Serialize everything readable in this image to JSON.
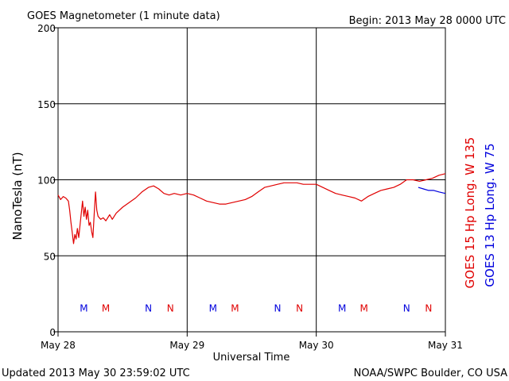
{
  "header": {
    "title": "GOES Magnetometer (1 minute data)",
    "begin": "Begin:  2013 May 28 0000 UTC"
  },
  "footer": {
    "updated": "Updated 2013 May 30 23:59:02 UTC",
    "credit": "NOAA/SWPC Boulder, CO USA"
  },
  "colors": {
    "goes15": "#e00000",
    "goes13": "#0000dd",
    "axis": "#000000"
  },
  "chart_data": {
    "type": "line",
    "xlabel": "Universal Time",
    "ylabel": "NanoTesla (nT)",
    "xlim": [
      0,
      3
    ],
    "ylim": [
      0,
      200
    ],
    "x_ticks": [
      {
        "value": 0,
        "label": "May 28"
      },
      {
        "value": 1,
        "label": "May 29"
      },
      {
        "value": 2,
        "label": "May 30"
      },
      {
        "value": 3,
        "label": "May 31"
      }
    ],
    "y_ticks": [
      {
        "value": 0,
        "label": "0"
      },
      {
        "value": 50,
        "label": "50"
      },
      {
        "value": 100,
        "label": "100"
      },
      {
        "value": 150,
        "label": "150"
      },
      {
        "value": 200,
        "label": "200"
      }
    ],
    "grid": true,
    "series": [
      {
        "name": "GOES 15 Hp  Long. W 135",
        "color": "#e00000",
        "points": [
          [
            0.0,
            90
          ],
          [
            0.02,
            87
          ],
          [
            0.04,
            89
          ],
          [
            0.06,
            88
          ],
          [
            0.08,
            86
          ],
          [
            0.09,
            80
          ],
          [
            0.1,
            72
          ],
          [
            0.11,
            65
          ],
          [
            0.12,
            58
          ],
          [
            0.13,
            64
          ],
          [
            0.14,
            61
          ],
          [
            0.15,
            68
          ],
          [
            0.16,
            62
          ],
          [
            0.17,
            70
          ],
          [
            0.18,
            78
          ],
          [
            0.19,
            86
          ],
          [
            0.2,
            76
          ],
          [
            0.21,
            82
          ],
          [
            0.22,
            74
          ],
          [
            0.23,
            80
          ],
          [
            0.24,
            70
          ],
          [
            0.25,
            72
          ],
          [
            0.26,
            66
          ],
          [
            0.27,
            62
          ],
          [
            0.28,
            78
          ],
          [
            0.29,
            92
          ],
          [
            0.3,
            80
          ],
          [
            0.31,
            76
          ],
          [
            0.33,
            74
          ],
          [
            0.35,
            75
          ],
          [
            0.37,
            73
          ],
          [
            0.4,
            77
          ],
          [
            0.42,
            74
          ],
          [
            0.45,
            78
          ],
          [
            0.5,
            82
          ],
          [
            0.55,
            85
          ],
          [
            0.6,
            88
          ],
          [
            0.65,
            92
          ],
          [
            0.7,
            95
          ],
          [
            0.74,
            96
          ],
          [
            0.78,
            94
          ],
          [
            0.82,
            91
          ],
          [
            0.86,
            90
          ],
          [
            0.9,
            91
          ],
          [
            0.95,
            90
          ],
          [
            1.0,
            91
          ],
          [
            1.05,
            90
          ],
          [
            1.1,
            88
          ],
          [
            1.15,
            86
          ],
          [
            1.2,
            85
          ],
          [
            1.25,
            84
          ],
          [
            1.3,
            84
          ],
          [
            1.35,
            85
          ],
          [
            1.4,
            86
          ],
          [
            1.45,
            87
          ],
          [
            1.5,
            89
          ],
          [
            1.55,
            92
          ],
          [
            1.6,
            95
          ],
          [
            1.65,
            96
          ],
          [
            1.7,
            97
          ],
          [
            1.75,
            98
          ],
          [
            1.8,
            98
          ],
          [
            1.85,
            98
          ],
          [
            1.9,
            97
          ],
          [
            1.95,
            97
          ],
          [
            2.0,
            97
          ],
          [
            2.05,
            95
          ],
          [
            2.1,
            93
          ],
          [
            2.15,
            91
          ],
          [
            2.2,
            90
          ],
          [
            2.25,
            89
          ],
          [
            2.3,
            88
          ],
          [
            2.35,
            86
          ],
          [
            2.4,
            89
          ],
          [
            2.45,
            91
          ],
          [
            2.5,
            93
          ],
          [
            2.55,
            94
          ],
          [
            2.6,
            95
          ],
          [
            2.65,
            97
          ],
          [
            2.7,
            100
          ],
          [
            2.75,
            100
          ],
          [
            2.8,
            99
          ],
          [
            2.85,
            100
          ],
          [
            2.9,
            101
          ],
          [
            2.95,
            103
          ],
          [
            3.0,
            104
          ]
        ]
      },
      {
        "name": "GOES 13 Hp  Long. W 75",
        "color": "#0000dd",
        "points": [
          [
            2.79,
            95
          ],
          [
            2.83,
            94
          ],
          [
            2.87,
            93
          ],
          [
            2.91,
            93
          ],
          [
            2.95,
            92
          ],
          [
            3.0,
            91
          ]
        ]
      }
    ],
    "markers": [
      {
        "x": 0.2,
        "label": "M",
        "color": "#0000dd"
      },
      {
        "x": 0.37,
        "label": "M",
        "color": "#e00000"
      },
      {
        "x": 0.7,
        "label": "N",
        "color": "#0000dd"
      },
      {
        "x": 0.87,
        "label": "N",
        "color": "#e00000"
      },
      {
        "x": 1.2,
        "label": "M",
        "color": "#0000dd"
      },
      {
        "x": 1.37,
        "label": "M",
        "color": "#e00000"
      },
      {
        "x": 1.7,
        "label": "N",
        "color": "#0000dd"
      },
      {
        "x": 1.87,
        "label": "N",
        "color": "#e00000"
      },
      {
        "x": 2.2,
        "label": "M",
        "color": "#0000dd"
      },
      {
        "x": 2.37,
        "label": "M",
        "color": "#e00000"
      },
      {
        "x": 2.7,
        "label": "N",
        "color": "#0000dd"
      },
      {
        "x": 2.87,
        "label": "N",
        "color": "#e00000"
      }
    ],
    "marker_y": 16
  }
}
